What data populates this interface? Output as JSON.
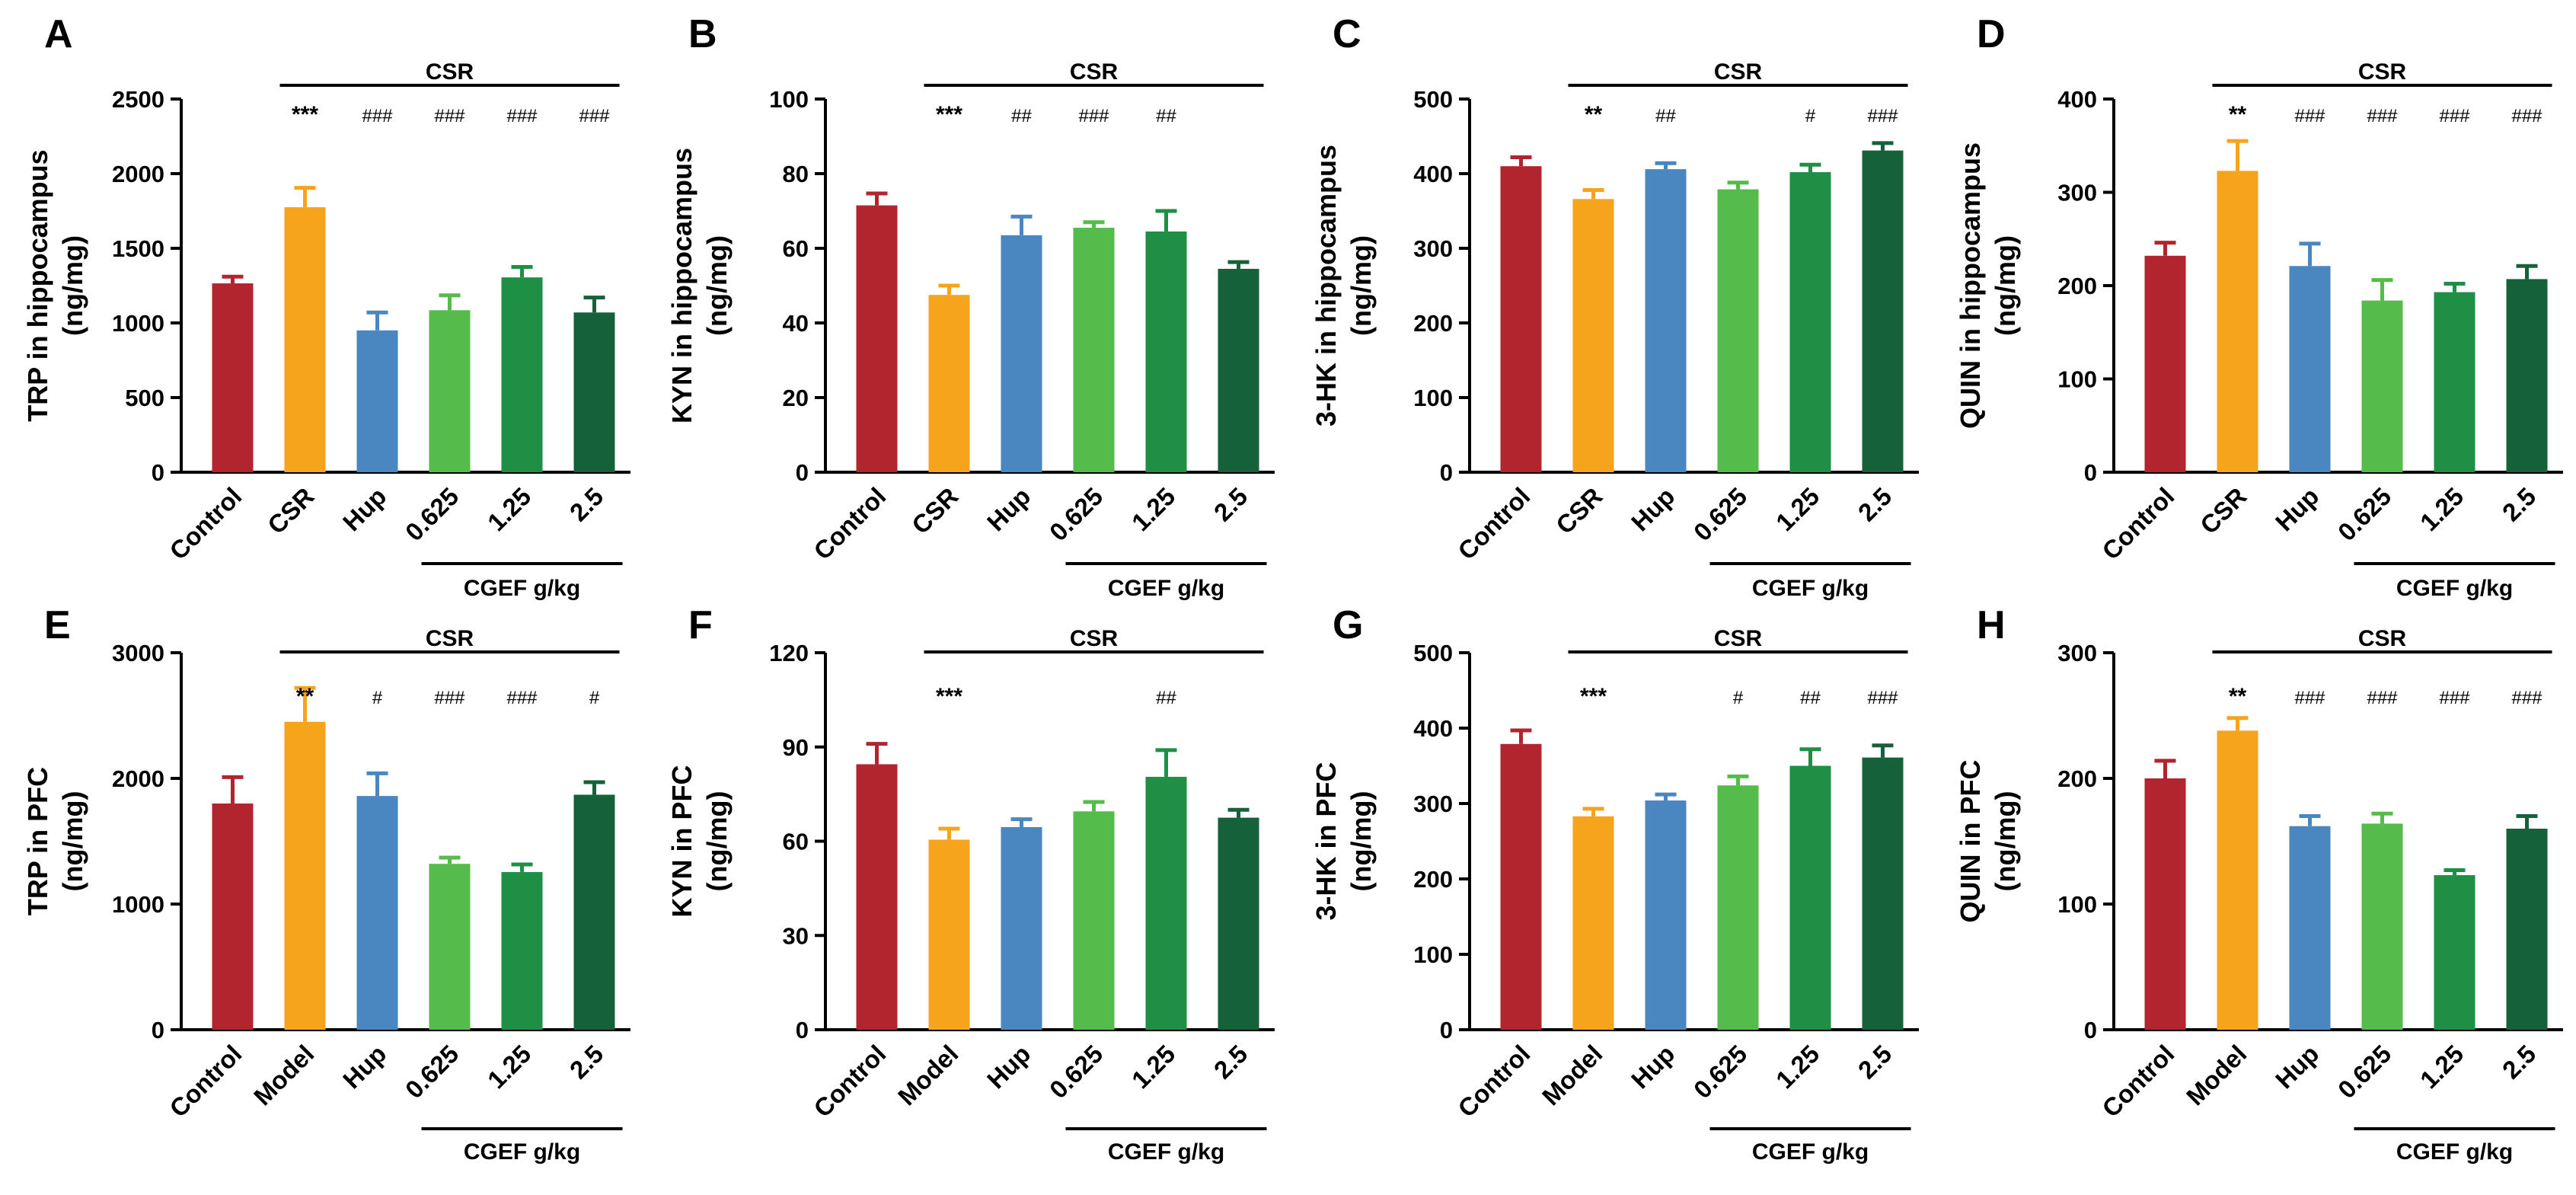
{
  "colors": {
    "bar_colors": [
      "#b2252e",
      "#f5a41c",
      "#4a86bf",
      "#55bb4a",
      "#1f8f45",
      "#15613a"
    ],
    "axis": "#000000"
  },
  "chart_data": [
    {
      "letter": "A",
      "type": "bar",
      "ylabel_line1": "TRP in hippocampus",
      "ylabel_line2": "(ng/mg)",
      "ylim": [
        0,
        2500
      ],
      "yticks": [
        0,
        500,
        1000,
        1500,
        2000,
        2500
      ],
      "categories": [
        "Control",
        "CSR",
        "Hup",
        "0.625",
        "1.25",
        "2.5"
      ],
      "values": [
        1265,
        1775,
        950,
        1085,
        1305,
        1070
      ],
      "errors": [
        45,
        130,
        120,
        100,
        70,
        100
      ],
      "significance": [
        "",
        "***",
        "###",
        "###",
        "###",
        "###"
      ],
      "top_bracket_label": "CSR",
      "bottom_bracket_label": "CGEF g/kg"
    },
    {
      "letter": "B",
      "type": "bar",
      "ylabel_line1": "KYN in hippocampus",
      "ylabel_line2": "(ng/mg)",
      "ylim": [
        0,
        100
      ],
      "yticks": [
        0,
        20,
        40,
        60,
        80,
        100
      ],
      "categories": [
        "Control",
        "CSR",
        "Hup",
        "0.625",
        "1.25",
        "2.5"
      ],
      "values": [
        71.5,
        47.5,
        63.5,
        65.5,
        64.5,
        54.5
      ],
      "errors": [
        3.2,
        2.5,
        5.0,
        1.5,
        5.5,
        1.8
      ],
      "significance": [
        "",
        "***",
        "##",
        "###",
        "##",
        ""
      ],
      "top_bracket_label": "CSR",
      "bottom_bracket_label": "CGEF g/kg"
    },
    {
      "letter": "C",
      "type": "bar",
      "ylabel_line1": "3-HK in hippocampus",
      "ylabel_line2": "(ng/mg)",
      "ylim": [
        0,
        500
      ],
      "yticks": [
        0,
        100,
        200,
        300,
        400,
        500
      ],
      "categories": [
        "Control",
        "CSR",
        "Hup",
        "0.625",
        "1.25",
        "2.5"
      ],
      "values": [
        410,
        366,
        406,
        379,
        402,
        431
      ],
      "errors": [
        12,
        12,
        8,
        9,
        10,
        10
      ],
      "significance": [
        "",
        "**",
        "##",
        "",
        "#",
        "###"
      ],
      "top_bracket_label": "CSR",
      "bottom_bracket_label": "CGEF g/kg"
    },
    {
      "letter": "D",
      "type": "bar",
      "ylabel_line1": "QUIN in hippocampus",
      "ylabel_line2": "(ng/mg)",
      "ylim": [
        0,
        400
      ],
      "yticks": [
        0,
        100,
        200,
        300,
        400
      ],
      "categories": [
        "Control",
        "CSR",
        "Hup",
        "0.625",
        "1.25",
        "2.5"
      ],
      "values": [
        232,
        323,
        221,
        184,
        193,
        207
      ],
      "errors": [
        14,
        32,
        24,
        22,
        9,
        14
      ],
      "significance": [
        "",
        "**",
        "###",
        "###",
        "###",
        "###"
      ],
      "top_bracket_label": "CSR",
      "bottom_bracket_label": "CGEF g/kg"
    },
    {
      "letter": "E",
      "type": "bar",
      "ylabel_line1": "TRP in PFC",
      "ylabel_line2": "(ng/mg)",
      "ylim": [
        0,
        3000
      ],
      "yticks": [
        0,
        1000,
        2000,
        3000
      ],
      "categories": [
        "Control",
        "Model",
        "Hup",
        "0.625",
        "1.25",
        "2.5"
      ],
      "values": [
        1800,
        2450,
        1860,
        1320,
        1255,
        1870
      ],
      "errors": [
        210,
        270,
        180,
        50,
        60,
        100
      ],
      "significance": [
        "",
        "**",
        "#",
        "###",
        "###",
        "#"
      ],
      "top_bracket_label": "CSR",
      "bottom_bracket_label": "CGEF g/kg"
    },
    {
      "letter": "F",
      "type": "bar",
      "ylabel_line1": "KYN in PFC",
      "ylabel_line2": "(ng/mg)",
      "ylim": [
        0,
        120
      ],
      "yticks": [
        0,
        30,
        60,
        90,
        120
      ],
      "categories": [
        "Control",
        "Model",
        "Hup",
        "0.625",
        "1.25",
        "2.5"
      ],
      "values": [
        84.5,
        60.5,
        64.5,
        69.5,
        80.5,
        67.5
      ],
      "errors": [
        6.5,
        3.5,
        2.5,
        3.0,
        8.5,
        2.5
      ],
      "significance": [
        "",
        "***",
        "",
        "",
        "##",
        ""
      ],
      "top_bracket_label": "CSR",
      "bottom_bracket_label": "CGEF g/kg"
    },
    {
      "letter": "G",
      "type": "bar",
      "ylabel_line1": "3-HK in PFC",
      "ylabel_line2": "(ng/mg)",
      "ylim": [
        0,
        500
      ],
      "yticks": [
        0,
        100,
        200,
        300,
        400,
        500
      ],
      "categories": [
        "Control",
        "Model",
        "Hup",
        "0.625",
        "1.25",
        "2.5"
      ],
      "values": [
        379,
        283,
        304,
        324,
        350,
        361
      ],
      "errors": [
        18,
        10,
        8,
        12,
        22,
        16
      ],
      "significance": [
        "",
        "***",
        "",
        "#",
        "##",
        "###"
      ],
      "top_bracket_label": "CSR",
      "bottom_bracket_label": "CGEF g/kg"
    },
    {
      "letter": "H",
      "type": "bar",
      "ylabel_line1": "QUIN in PFC",
      "ylabel_line2": "(ng/mg)",
      "ylim": [
        0,
        300
      ],
      "yticks": [
        0,
        100,
        200,
        300
      ],
      "categories": [
        "Control",
        "Model",
        "Hup",
        "0.625",
        "1.25",
        "2.5"
      ],
      "values": [
        200,
        238,
        162,
        164,
        123,
        160
      ],
      "errors": [
        14,
        10,
        8,
        8,
        4,
        10
      ],
      "significance": [
        "",
        "**",
        "###",
        "###",
        "###",
        "###"
      ],
      "top_bracket_label": "CSR",
      "bottom_bracket_label": "CGEF g/kg"
    }
  ]
}
